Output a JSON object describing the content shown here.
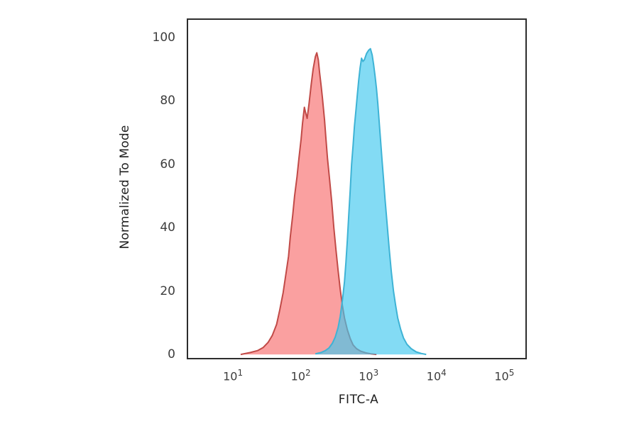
{
  "figure": {
    "background": "#ffffff",
    "plot_border_color": "#2d2d2d",
    "tick_label_color": "#3d3d3d",
    "axis_title_color": "#1f1f1f"
  },
  "chart_data": {
    "type": "area",
    "subtype": "flow-cytometry-histogram-overlay",
    "title": "",
    "xlabel": "FITC-A",
    "ylabel": "Normalized To Mode",
    "grid": false,
    "legend": "none",
    "x_scale": "log10",
    "x_tick_base": "10",
    "x_tick_exponents": [
      1,
      2,
      3,
      4,
      5
    ],
    "x_axis_log_range": [
      0.34,
      5.31
    ],
    "y_ticks": [
      0,
      20,
      40,
      60,
      80,
      100
    ],
    "y_axis_range": [
      -1.1,
      105.6
    ],
    "series": [
      {
        "name": "red-histogram",
        "fill_color": "rgba(246,92,92,0.58)",
        "stroke_color": "#c14a47",
        "stroke_width": 2,
        "points": [
          [
            13,
            0
          ],
          [
            18,
            0.6
          ],
          [
            23,
            1.2
          ],
          [
            28,
            2.2
          ],
          [
            33,
            3.8
          ],
          [
            38,
            6
          ],
          [
            44,
            9.5
          ],
          [
            49,
            14
          ],
          [
            55,
            19.5
          ],
          [
            61,
            26
          ],
          [
            66,
            31
          ],
          [
            70,
            37
          ],
          [
            76,
            44
          ],
          [
            81,
            50
          ],
          [
            88,
            56
          ],
          [
            94,
            62
          ],
          [
            101,
            68
          ],
          [
            106,
            73
          ],
          [
            113,
            78
          ],
          [
            117,
            76.5
          ],
          [
            124,
            74.5
          ],
          [
            132,
            79
          ],
          [
            142,
            85
          ],
          [
            152,
            90
          ],
          [
            164,
            94
          ],
          [
            172,
            95.2
          ],
          [
            181,
            93
          ],
          [
            189,
            89
          ],
          [
            199,
            85
          ],
          [
            208,
            81
          ],
          [
            224,
            74
          ],
          [
            235,
            68
          ],
          [
            247,
            62
          ],
          [
            266,
            55
          ],
          [
            286,
            48
          ],
          [
            307,
            40
          ],
          [
            330,
            33
          ],
          [
            355,
            26.5
          ],
          [
            381,
            20.5
          ],
          [
            410,
            15.5
          ],
          [
            441,
            11.5
          ],
          [
            485,
            7.8
          ],
          [
            535,
            5
          ],
          [
            589,
            3
          ],
          [
            664,
            1.8
          ],
          [
            767,
            1
          ],
          [
            908,
            0.5
          ],
          [
            1074,
            0.2
          ],
          [
            1303,
            0
          ]
        ]
      },
      {
        "name": "blue-histogram",
        "fill_color": "rgba(64,199,238,0.65)",
        "stroke_color": "#3eb3d5",
        "stroke_width": 2,
        "points": [
          [
            164,
            0.2
          ],
          [
            199,
            0.6
          ],
          [
            230,
            1.2
          ],
          [
            259,
            2
          ],
          [
            292,
            3.5
          ],
          [
            322,
            5.5
          ],
          [
            355,
            8.5
          ],
          [
            381,
            12
          ],
          [
            410,
            17
          ],
          [
            441,
            23
          ],
          [
            462,
            29
          ],
          [
            485,
            36
          ],
          [
            509,
            44
          ],
          [
            535,
            52
          ],
          [
            561,
            60
          ],
          [
            589,
            66
          ],
          [
            618,
            72
          ],
          [
            649,
            77
          ],
          [
            681,
            82
          ],
          [
            714,
            86.5
          ],
          [
            748,
            90.5
          ],
          [
            785,
            93.5
          ],
          [
            824,
            92.5
          ],
          [
            865,
            93
          ],
          [
            931,
            95
          ],
          [
            1000,
            96
          ],
          [
            1062,
            96.5
          ],
          [
            1128,
            94.5
          ],
          [
            1183,
            91.5
          ],
          [
            1242,
            88
          ],
          [
            1303,
            84
          ],
          [
            1368,
            79
          ],
          [
            1435,
            73
          ],
          [
            1507,
            67
          ],
          [
            1581,
            61
          ],
          [
            1660,
            55
          ],
          [
            1742,
            49
          ],
          [
            1872,
            41
          ],
          [
            2014,
            33
          ],
          [
            2163,
            26
          ],
          [
            2324,
            20
          ],
          [
            2499,
            15.5
          ],
          [
            2685,
            11.5
          ],
          [
            2958,
            8
          ],
          [
            3259,
            5.2
          ],
          [
            3674,
            3.2
          ],
          [
            4246,
            1.8
          ],
          [
            5024,
            0.8
          ],
          [
            5952,
            0.3
          ],
          [
            7047,
            0
          ]
        ]
      }
    ]
  }
}
